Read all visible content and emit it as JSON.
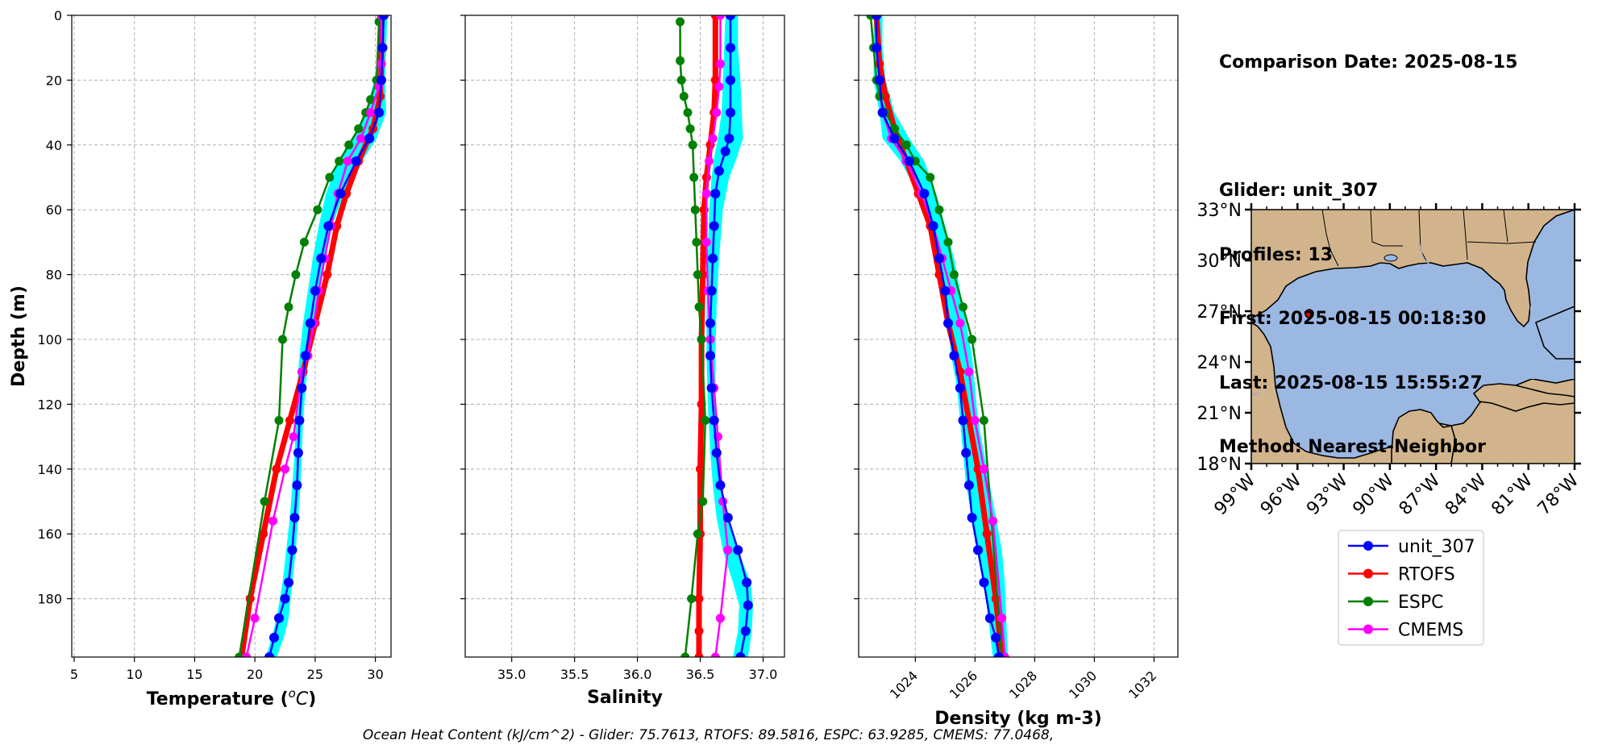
{
  "info": {
    "comparison_date": "Comparison Date: 2025-08-15",
    "glider": "Glider: unit_307",
    "profiles": "Profiles: 13",
    "first": "First: 2025-08-15 00:18:30",
    "last": "Last: 2025-08-15 15:55:27",
    "method": "Method: Nearest-Neighbor"
  },
  "footer": "Ocean Heat Content (kJ/cm^2) - Glider: 75.7613,  RTOFS: 89.5816,  ESPC: 63.9285,  CMEMS: 77.0468,",
  "colors": {
    "glider": "#0000ff",
    "glider_shade": "#00ffff",
    "rtofs": "#ff0000",
    "espc": "#008000",
    "cmems": "#ff00ff",
    "land": "#d2b48c",
    "ocean": "#9bb8e3",
    "grid": "#b0b0b0"
  },
  "legend": [
    {
      "name": "unit_307",
      "color": "#0000ff"
    },
    {
      "name": "RTOFS",
      "color": "#ff0000"
    },
    {
      "name": "ESPC",
      "color": "#008000"
    },
    {
      "name": "CMEMS",
      "color": "#ff00ff"
    }
  ],
  "chart_data": [
    {
      "type": "line",
      "xlabel": "Temperature ($^oC$)",
      "ylabel": "Depth (m)",
      "xlim": [
        4.8,
        31.3
      ],
      "ylim": [
        198,
        0
      ],
      "xticks": [
        5,
        10,
        15,
        20,
        25,
        30
      ],
      "yticks": [
        0,
        20,
        40,
        60,
        80,
        100,
        120,
        140,
        160,
        180
      ],
      "grid": true,
      "series": [
        {
          "name": "unit_307",
          "x": [
            30.7,
            30.6,
            30.5,
            30.3,
            29.5,
            28.4,
            27.1,
            26.1,
            25.5,
            25.0,
            24.6,
            24.2,
            23.9,
            23.7,
            23.6,
            23.5,
            23.3,
            23.1,
            22.8,
            22.5,
            22.0,
            21.6,
            21.2
          ],
          "y": [
            0,
            10,
            20,
            30,
            38,
            45,
            55,
            65,
            75,
            85,
            95,
            105,
            115,
            125,
            135,
            145,
            155,
            165,
            175,
            180,
            186,
            192,
            198
          ]
        },
        {
          "name": "RTOFS",
          "x": [
            30.5,
            30.5,
            30.4,
            29.8,
            28.6,
            27.6,
            26.8,
            26.0,
            25.0,
            24.0,
            22.9,
            21.8,
            20.7,
            19.6,
            18.9
          ],
          "y": [
            0,
            15,
            25,
            35,
            45,
            55,
            65,
            80,
            95,
            110,
            125,
            140,
            160,
            180,
            198
          ]
        },
        {
          "name": "ESPC",
          "x": [
            30.3,
            30.1,
            29.6,
            29.2,
            28.6,
            27.8,
            27.0,
            26.2,
            25.2,
            24.1,
            23.4,
            22.8,
            22.3,
            22.0,
            20.8,
            18.7
          ],
          "y": [
            2,
            20,
            26,
            30,
            35,
            40,
            45,
            50,
            60,
            70,
            80,
            90,
            100,
            125,
            150,
            198
          ]
        },
        {
          "name": "CMEMS",
          "x": [
            30.5,
            30.5,
            30.3,
            29.6,
            28.8,
            27.7,
            26.9,
            26.3,
            25.8,
            25.3,
            24.9,
            24.4,
            23.9,
            23.2,
            22.5,
            21.5,
            20.0,
            19.3
          ],
          "y": [
            0,
            15,
            22,
            30,
            38,
            45,
            55,
            65,
            75,
            85,
            95,
            105,
            110,
            130,
            140,
            156,
            186,
            198
          ]
        }
      ],
      "glider_band": {
        "left": [
          30.4,
          30.3,
          29.9,
          29.2,
          28.2,
          26.9,
          25.9,
          25.3,
          24.8,
          24.4,
          24.0,
          23.7,
          23.5,
          23.4,
          23.3,
          23.1,
          22.9,
          22.6,
          22.3,
          21.8,
          21.4,
          20.9
        ],
        "right": [
          31.0,
          30.9,
          30.8,
          30.9,
          30.1,
          28.9,
          27.4,
          26.4,
          25.8,
          25.3,
          24.9,
          24.5,
          24.2,
          24.0,
          23.9,
          23.8,
          23.6,
          23.4,
          23.1,
          22.8,
          22.4,
          21.8
        ],
        "y": [
          0,
          10,
          20,
          30,
          38,
          45,
          55,
          65,
          75,
          85,
          95,
          105,
          115,
          125,
          135,
          145,
          155,
          165,
          175,
          186,
          192,
          198
        ]
      }
    },
    {
      "type": "line",
      "xlabel": "Salinity",
      "ylabel": "",
      "xlim": [
        34.63,
        37.17
      ],
      "ylim": [
        198,
        0
      ],
      "xticks": [
        "35.0",
        "35.5",
        "36.0",
        "36.5",
        "37.0"
      ],
      "grid": true,
      "series": [
        {
          "name": "unit_307",
          "x": [
            36.74,
            36.74,
            36.74,
            36.74,
            36.73,
            36.7,
            36.65,
            36.62,
            36.61,
            36.6,
            36.59,
            36.58,
            36.58,
            36.59,
            36.61,
            36.63,
            36.66,
            36.72,
            36.8,
            36.87,
            36.88,
            36.86,
            36.82
          ],
          "y": [
            0,
            10,
            20,
            30,
            38,
            42,
            48,
            55,
            65,
            75,
            85,
            95,
            105,
            115,
            125,
            135,
            145,
            155,
            165,
            175,
            182,
            190,
            198
          ]
        },
        {
          "name": "RTOFS",
          "x": [
            36.62,
            36.62,
            36.61,
            36.58,
            36.55,
            36.53,
            36.52,
            36.51,
            36.51,
            36.5,
            36.5,
            36.49,
            36.49,
            36.49
          ],
          "y": [
            0,
            20,
            30,
            40,
            50,
            60,
            80,
            100,
            120,
            140,
            160,
            180,
            190,
            198
          ]
        },
        {
          "name": "ESPC",
          "x": [
            36.34,
            36.34,
            36.35,
            36.37,
            36.4,
            36.42,
            36.44,
            36.45,
            36.46,
            36.47,
            36.48,
            36.49,
            36.51,
            36.54,
            36.52,
            36.48,
            36.43,
            36.38
          ],
          "y": [
            2,
            14,
            20,
            25,
            30,
            35,
            40,
            50,
            60,
            70,
            80,
            90,
            100,
            125,
            150,
            160,
            180,
            198
          ]
        },
        {
          "name": "CMEMS",
          "x": [
            36.66,
            36.66,
            36.65,
            36.63,
            36.6,
            36.57,
            36.55,
            36.55,
            36.56,
            36.58,
            36.61,
            36.64,
            36.68,
            36.72,
            36.66,
            36.62
          ],
          "y": [
            0,
            15,
            22,
            30,
            38,
            45,
            55,
            70,
            85,
            100,
            115,
            130,
            150,
            165,
            186,
            198
          ]
        }
      ],
      "glider_band": {
        "left": [
          36.7,
          36.69,
          36.68,
          36.67,
          36.64,
          36.61,
          36.59,
          36.57,
          36.56,
          36.55,
          36.55,
          36.56,
          36.58,
          36.6,
          36.63,
          36.68,
          36.76,
          36.81,
          36.8,
          36.76
        ],
        "right": [
          36.8,
          36.8,
          36.82,
          36.83,
          36.84,
          36.79,
          36.73,
          36.68,
          36.65,
          36.63,
          36.62,
          36.62,
          36.64,
          36.67,
          36.72,
          36.8,
          36.9,
          36.92,
          36.91,
          36.88
        ],
        "y": [
          0,
          10,
          20,
          30,
          38,
          44,
          50,
          60,
          75,
          90,
          105,
          120,
          135,
          145,
          155,
          165,
          175,
          182,
          190,
          198
        ]
      }
    },
    {
      "type": "line",
      "xlabel": "Density (kg m-3)",
      "ylabel": "",
      "xlim": [
        1022.1,
        1032.8
      ],
      "ylim": [
        198,
        0
      ],
      "xticks": [
        "1024",
        "1026",
        "1028",
        "1030",
        "1032"
      ],
      "grid": true,
      "series": [
        {
          "name": "unit_307",
          "x": [
            1022.7,
            1022.7,
            1022.8,
            1022.9,
            1023.3,
            1023.8,
            1024.3,
            1024.6,
            1024.8,
            1025.0,
            1025.1,
            1025.3,
            1025.5,
            1025.6,
            1025.7,
            1025.8,
            1025.9,
            1026.1,
            1026.3,
            1026.5,
            1026.7,
            1026.8
          ],
          "y": [
            0,
            10,
            20,
            30,
            38,
            45,
            55,
            65,
            75,
            85,
            95,
            105,
            115,
            125,
            135,
            145,
            155,
            165,
            175,
            186,
            192,
            198
          ]
        },
        {
          "name": "RTOFS",
          "x": [
            1022.7,
            1022.8,
            1023.0,
            1023.3,
            1023.7,
            1024.1,
            1024.5,
            1024.8,
            1025.1,
            1025.5,
            1025.8,
            1026.1,
            1026.4,
            1026.7,
            1026.9
          ],
          "y": [
            0,
            15,
            25,
            35,
            45,
            55,
            65,
            80,
            95,
            110,
            125,
            140,
            160,
            180,
            198
          ]
        },
        {
          "name": "ESPC",
          "x": [
            1022.5,
            1022.6,
            1022.7,
            1022.8,
            1023.0,
            1023.3,
            1023.7,
            1024.0,
            1024.5,
            1024.8,
            1025.1,
            1025.3,
            1025.6,
            1025.9,
            1026.3,
            1026.9
          ],
          "y": [
            0,
            10,
            20,
            25,
            30,
            35,
            40,
            45,
            50,
            60,
            70,
            80,
            90,
            100,
            125,
            198
          ]
        },
        {
          "name": "CMEMS",
          "x": [
            1022.7,
            1022.7,
            1022.8,
            1022.9,
            1023.2,
            1023.7,
            1024.2,
            1024.6,
            1024.9,
            1025.2,
            1025.5,
            1025.8,
            1026.0,
            1026.3,
            1026.6,
            1026.9,
            1027.0
          ],
          "y": [
            0,
            10,
            20,
            30,
            38,
            45,
            55,
            65,
            75,
            85,
            95,
            110,
            125,
            140,
            156,
            186,
            198
          ]
        }
      ],
      "glider_band": {
        "left": [
          1022.6,
          1022.6,
          1022.6,
          1022.8,
          1022.9,
          1023.5,
          1024.1,
          1024.5,
          1024.7,
          1024.9,
          1025.1,
          1025.2,
          1025.4,
          1025.5,
          1025.6,
          1025.7,
          1025.9,
          1026.1,
          1026.3,
          1026.6
        ],
        "right": [
          1022.9,
          1022.9,
          1023.0,
          1023.3,
          1023.8,
          1024.3,
          1024.7,
          1025.0,
          1025.3,
          1025.5,
          1025.7,
          1025.9,
          1026.0,
          1026.1,
          1026.3,
          1026.5,
          1026.7,
          1026.9,
          1027.0,
          1027.1
        ],
        "y": [
          0,
          10,
          20,
          30,
          38,
          45,
          55,
          65,
          75,
          85,
          95,
          105,
          115,
          125,
          135,
          145,
          155,
          165,
          175,
          198
        ]
      }
    },
    {
      "type": "map",
      "extent": {
        "lon": [
          -99,
          -78
        ],
        "lat": [
          18,
          33
        ]
      },
      "xticks": [
        "99°W",
        "96°W",
        "93°W",
        "90°W",
        "87°W",
        "84°W",
        "81°W",
        "78°W"
      ],
      "yticks": [
        "33°N",
        "30°N",
        "27°N",
        "24°N",
        "21°N",
        "18°N"
      ],
      "glider_position": {
        "lon": -95.3,
        "lat": 27.1
      }
    }
  ]
}
